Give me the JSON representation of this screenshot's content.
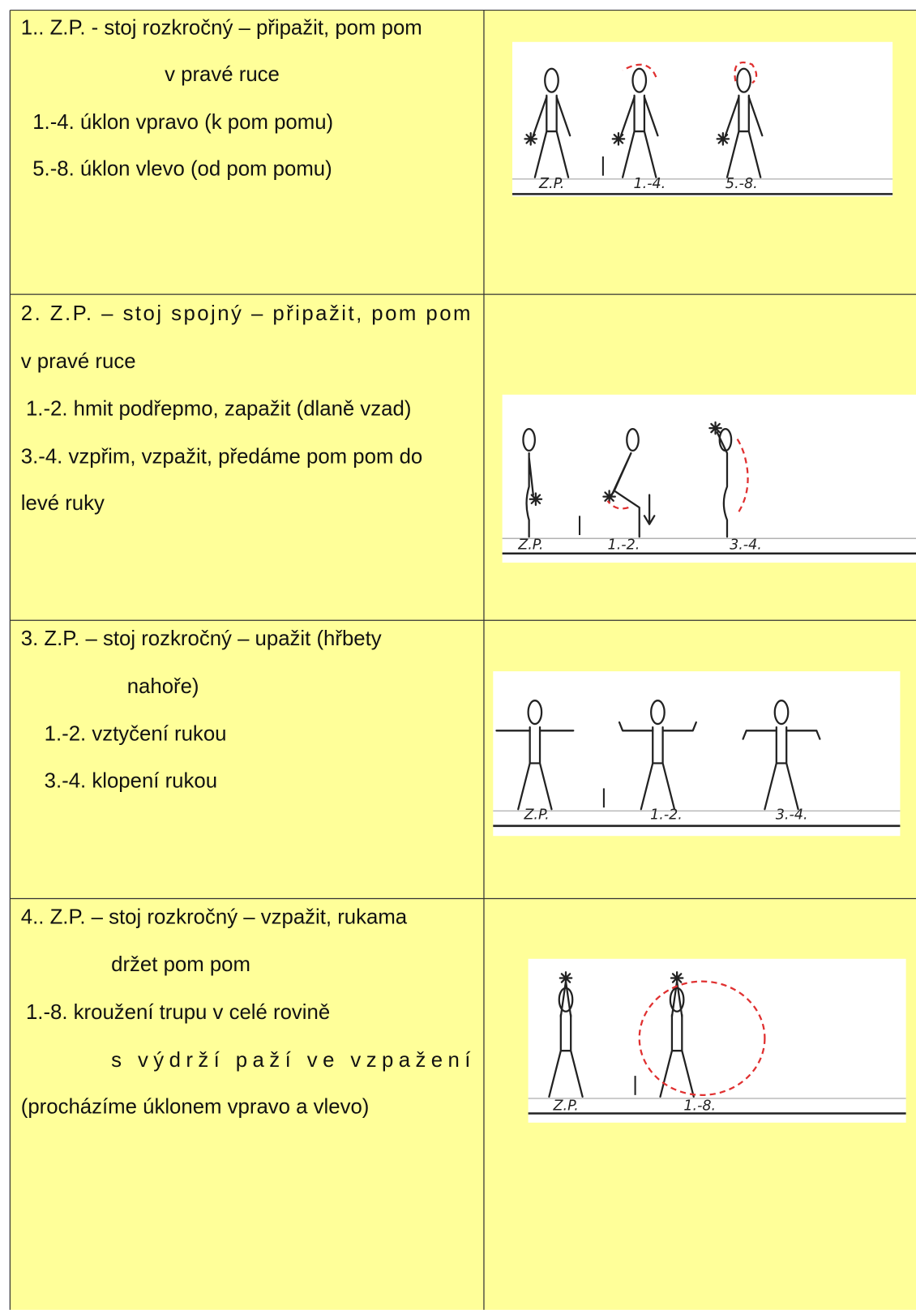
{
  "table": {
    "rows": [
      {
        "lines": [
          "1.. Z.P. - stoj rozkročný – připažit, pom pom",
          "v pravé ruce",
          "1.-4. úklon vpravo (k pom pomu)",
          "5.-8. úklon vlevo (od pom pomu)"
        ],
        "figure_labels": [
          "Z.P.",
          "1.-4.",
          "5.-8."
        ]
      },
      {
        "lines": [
          "2.  Z.P. – stoj spojný – připažit, pom pom",
          "v pravé ruce",
          "1.-2. hmit podřepmo, zapažit (dlaně vzad)",
          "3.-4. vzpřim, vzpažit, předáme pom pom do",
          "levé ruky"
        ],
        "figure_labels": [
          "Z.P.",
          "1.-2.",
          "3.-4."
        ]
      },
      {
        "lines": [
          "3. Z.P. – stoj rozkročný – upažit (hřbety",
          "nahoře)",
          "1.-2. vztyčení rukou",
          "3.-4. klopení rukou"
        ],
        "figure_labels": [
          "Z.P.",
          "1.-2.",
          "3.-4."
        ]
      },
      {
        "lines": [
          "4.. Z.P. – stoj rozkročný – vzpažit, rukama",
          "držet pom pom",
          "1.-8. kroužení trupu v celé rovině",
          "s výdrží paží ve vzpažení",
          "(procházíme úklonem vpravo a vlevo)"
        ],
        "figure_labels": [
          "Z.P.",
          "1.-8."
        ]
      }
    ]
  }
}
